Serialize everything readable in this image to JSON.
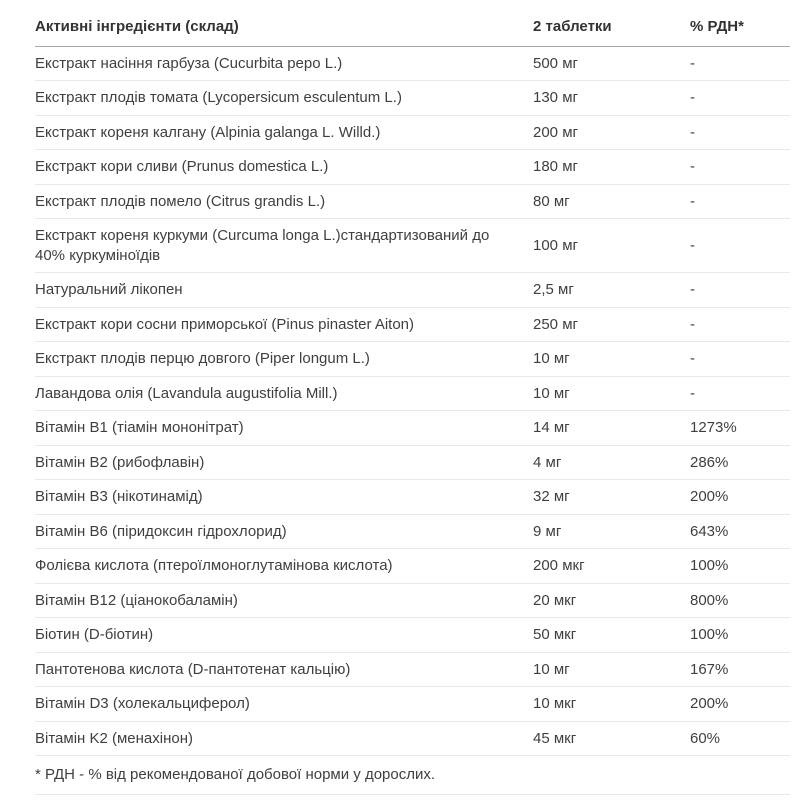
{
  "colors": {
    "background": "#ffffff",
    "body_text": "#3f3f3f",
    "header_text": "#333333",
    "row_divider": "#e9e9e9",
    "header_divider": "#a8a8a8"
  },
  "table": {
    "columns": [
      "Активні інгредієнти (склад)",
      "2 таблетки",
      "% РДН*"
    ],
    "rows": [
      {
        "name": "Екстракт насіння гарбуза (Cucurbita pepo L.)",
        "amount": "500 мг",
        "rdn": "-"
      },
      {
        "name": "Екстракт плодів томата (Lycopersicum esculentum L.)",
        "amount": "130 мг",
        "rdn": "-"
      },
      {
        "name": "Екстракт кореня калгану (Alpinia galanga L. Willd.)",
        "amount": "200 мг",
        "rdn": "-"
      },
      {
        "name": "Екстракт кори сливи (Prunus domestica L.)",
        "amount": "180 мг",
        "rdn": "-"
      },
      {
        "name": "Екстракт плодів помело (Citrus grandis L.)",
        "amount": "80 мг",
        "rdn": "-"
      },
      {
        "name": "Екстракт кореня куркуми (Curcuma longa L.)стандартизований до 40% куркуміноїдів",
        "amount": "100 мг",
        "rdn": "-"
      },
      {
        "name": "Натуральний лікопен",
        "amount": "2,5 мг",
        "rdn": "-"
      },
      {
        "name": "Екстракт кори сосни приморської (Pinus pinaster Aiton)",
        "amount": "250 мг",
        "rdn": "-"
      },
      {
        "name": "Екстракт плодів перцю довгого (Piper longum L.)",
        "amount": "10 мг",
        "rdn": "-"
      },
      {
        "name": "Лавандова олія (Lavandula augustifolia Mill.)",
        "amount": "10 мг",
        "rdn": "-"
      },
      {
        "name": "Вітамін B1 (тіамін мононітрат)",
        "amount": "14 мг",
        "rdn": "1273%"
      },
      {
        "name": "Вітамін B2 (рибофлавін)",
        "amount": "4 мг",
        "rdn": "286%"
      },
      {
        "name": "Вітамін B3 (нікотинамід)",
        "amount": "32 мг",
        "rdn": "200%"
      },
      {
        "name": "Вітамін B6 (піридоксин гідрохлорид)",
        "amount": "9 мг",
        "rdn": "643%"
      },
      {
        "name": "Фолієва кислота (птероїлмоноглутамінова кислота)",
        "amount": "200 мкг",
        "rdn": "100%"
      },
      {
        "name": "Вітамін B12 (ціанокобаламін)",
        "amount": "20 мкг",
        "rdn": "800%"
      },
      {
        "name": "Біотин (D-біотин)",
        "amount": "50 мкг",
        "rdn": "100%"
      },
      {
        "name": "Пантотенова кислота (D-пантотенат кальцію)",
        "amount": "10 мг",
        "rdn": "167%"
      },
      {
        "name": "Вітамін D3 (холекальциферол)",
        "amount": "10 мкг",
        "rdn": "200%"
      },
      {
        "name": "Вітамін K2 (менахінон)",
        "amount": "45 мкг",
        "rdn": "60%"
      }
    ],
    "footnote": "* РДН - % від рекомендованої добової норми у дорослих."
  }
}
